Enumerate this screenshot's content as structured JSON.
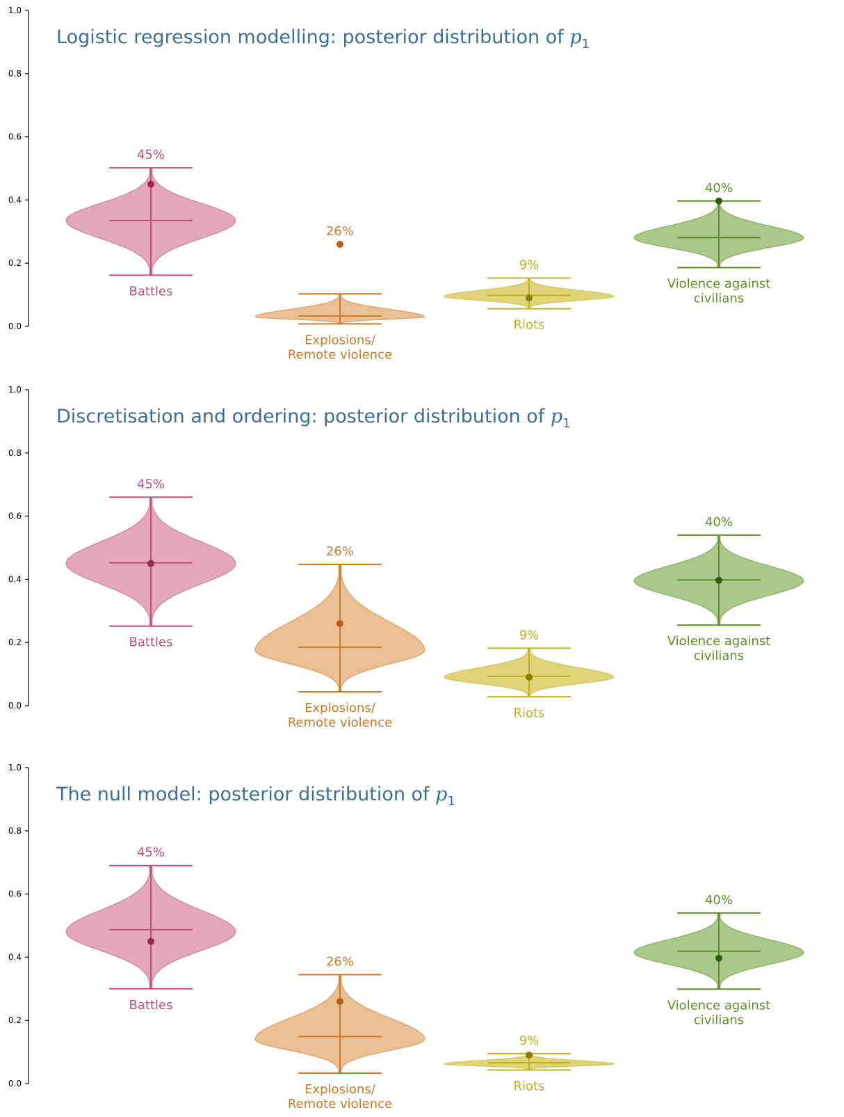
{
  "colors": {
    "title": "#3a6f9a",
    "axis": "#000000",
    "categories": {
      "Battles": {
        "fill": "#d98ba3",
        "stroke": "#c44d73",
        "dot": "#9c2a4e",
        "text": "#c44d73"
      },
      "Explosions": {
        "fill": "#e3a96f",
        "stroke": "#d07925",
        "dot": "#b85e10",
        "text": "#d07925"
      },
      "Riots": {
        "fill": "#d4c64a",
        "stroke": "#c2b018",
        "dot": "#8f7d05",
        "text": "#c2b018"
      },
      "Violence": {
        "fill": "#8db661",
        "stroke": "#5a9025",
        "dot": "#2e5e0a",
        "text": "#5a9025"
      }
    }
  },
  "chart_data": [
    {
      "type": "violin",
      "title_text": "Logistic regression modelling: posterior distribution of ",
      "title_math": "p",
      "title_sub": "1",
      "ylim": [
        0,
        1
      ],
      "yticks": [
        "0.0",
        "0.2",
        "0.4",
        "0.6",
        "0.8",
        "1.0"
      ],
      "grid": false,
      "violins": [
        {
          "key": "Battles",
          "label_lines": [
            "Battles"
          ],
          "pct_label": "45%",
          "observed": 0.45,
          "min": 0.162,
          "max": 0.502,
          "median": 0.335,
          "mode": 0.335,
          "max_width": 0.45
        },
        {
          "key": "Explosions",
          "label_lines": [
            "Explosions/",
            "Remote violence"
          ],
          "pct_label": "26%",
          "observed": 0.26,
          "min": 0.008,
          "max": 0.103,
          "median": 0.033,
          "mode": 0.03,
          "max_width": 0.45
        },
        {
          "key": "Riots",
          "label_lines": [
            "Riots"
          ],
          "pct_label": "9%",
          "observed": 0.09,
          "min": 0.056,
          "max": 0.153,
          "median": 0.098,
          "mode": 0.095,
          "max_width": 0.45
        },
        {
          "key": "Violence",
          "label_lines": [
            "Violence against",
            "civilians"
          ],
          "pct_label": "40%",
          "observed": 0.397,
          "min": 0.186,
          "max": 0.397,
          "median": 0.281,
          "mode": 0.28,
          "max_width": 0.45
        }
      ]
    },
    {
      "type": "violin",
      "title_text": "Discretisation and ordering: posterior distribution of ",
      "title_math": "p",
      "title_sub": "1",
      "ylim": [
        0,
        1
      ],
      "yticks": [
        "0.0",
        "0.2",
        "0.4",
        "0.6",
        "0.8",
        "1.0"
      ],
      "grid": false,
      "violins": [
        {
          "key": "Battles",
          "label_lines": [
            "Battles"
          ],
          "pct_label": "45%",
          "observed": 0.45,
          "min": 0.252,
          "max": 0.66,
          "median": 0.452,
          "mode": 0.45,
          "max_width": 0.45
        },
        {
          "key": "Explosions",
          "label_lines": [
            "Explosions/",
            "Remote violence"
          ],
          "pct_label": "26%",
          "observed": 0.26,
          "min": 0.044,
          "max": 0.447,
          "median": 0.185,
          "mode": 0.175,
          "max_width": 0.45
        },
        {
          "key": "Riots",
          "label_lines": [
            "Riots"
          ],
          "pct_label": "9%",
          "observed": 0.09,
          "min": 0.028,
          "max": 0.182,
          "median": 0.093,
          "mode": 0.09,
          "max_width": 0.45
        },
        {
          "key": "Violence",
          "label_lines": [
            "Violence against",
            "civilians"
          ],
          "pct_label": "40%",
          "observed": 0.397,
          "min": 0.255,
          "max": 0.54,
          "median": 0.398,
          "mode": 0.395,
          "max_width": 0.45
        }
      ]
    },
    {
      "type": "violin",
      "title_text": "The null model: posterior distribution of ",
      "title_math": "p",
      "title_sub": "1",
      "ylim": [
        0,
        1
      ],
      "yticks": [
        "0.0",
        "0.2",
        "0.4",
        "0.6",
        "0.8",
        "1.0"
      ],
      "grid": false,
      "violins": [
        {
          "key": "Battles",
          "label_lines": [
            "Battles"
          ],
          "pct_label": "45%",
          "observed": 0.45,
          "min": 0.3,
          "max": 0.69,
          "median": 0.487,
          "mode": 0.48,
          "max_width": 0.45
        },
        {
          "key": "Explosions",
          "label_lines": [
            "Explosions/",
            "Remote violence"
          ],
          "pct_label": "26%",
          "observed": 0.26,
          "min": 0.033,
          "max": 0.345,
          "median": 0.149,
          "mode": 0.14,
          "max_width": 0.45
        },
        {
          "key": "Riots",
          "label_lines": [
            "Riots"
          ],
          "pct_label": "9%",
          "observed": 0.09,
          "min": 0.043,
          "max": 0.095,
          "median": 0.066,
          "mode": 0.062,
          "max_width": 0.45
        },
        {
          "key": "Violence",
          "label_lines": [
            "Violence against",
            "civilians"
          ],
          "pct_label": "40%",
          "observed": 0.397,
          "min": 0.299,
          "max": 0.54,
          "median": 0.419,
          "mode": 0.415,
          "max_width": 0.45
        }
      ]
    }
  ]
}
